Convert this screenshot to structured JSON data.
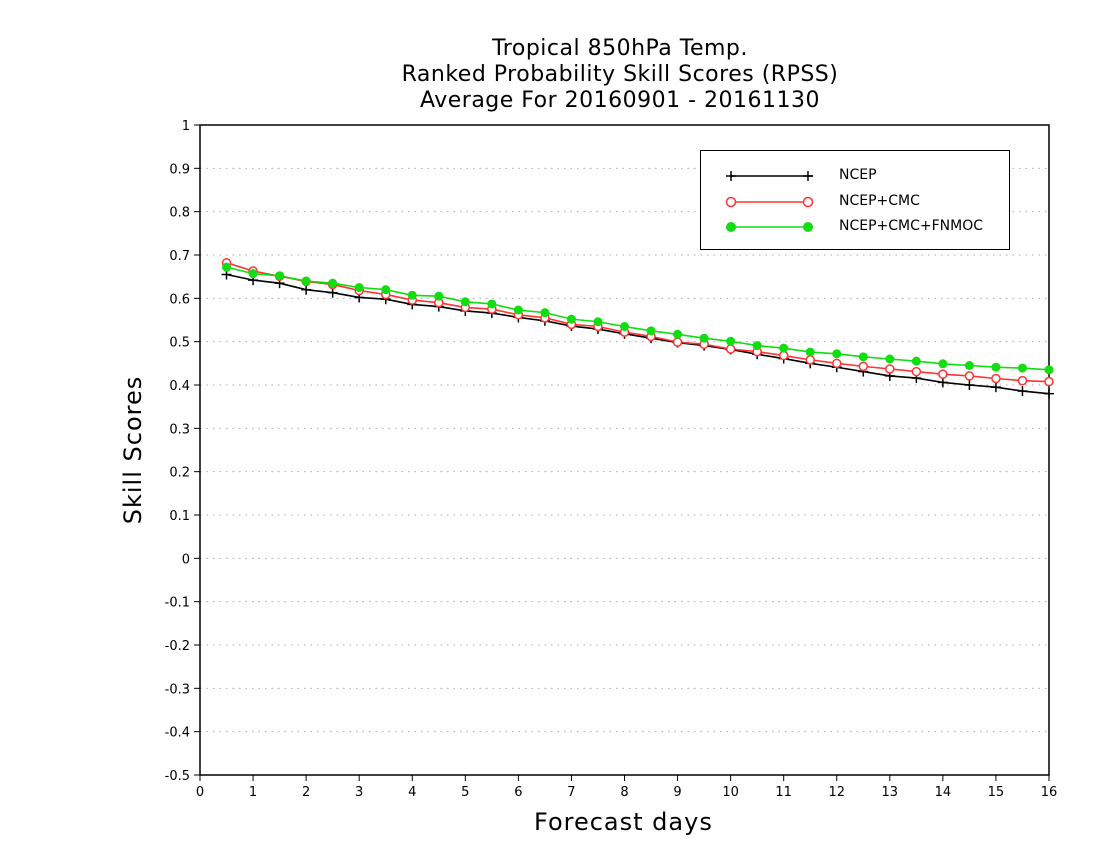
{
  "chart_data": {
    "type": "line",
    "title": [
      "Tropical 850hPa Temp.",
      "Ranked Probability Skill Scores (RPSS)",
      "Average For 20160901 - 20161130"
    ],
    "xlabel": "Forecast days",
    "ylabel": "Skill Scores",
    "xlim": [
      0,
      16
    ],
    "ylim": [
      -0.5,
      1
    ],
    "x_ticks": [
      "0",
      "1",
      "2",
      "3",
      "4",
      "5",
      "6",
      "7",
      "8",
      "9",
      "10",
      "11",
      "12",
      "13",
      "14",
      "15",
      "16"
    ],
    "y_ticks": [
      "-0.5",
      "-0.4",
      "-0.3",
      "-0.2",
      "-0.1",
      "0",
      "0.1",
      "0.2",
      "0.3",
      "0.4",
      "0.5",
      "0.6",
      "0.7",
      "0.8",
      "0.9",
      "1"
    ],
    "grid": "horizontal dotted",
    "legend_position": "top-right",
    "x": [
      0.5,
      1,
      1.5,
      2,
      2.5,
      3,
      3.5,
      4,
      4.5,
      5,
      5.5,
      6,
      6.5,
      7,
      7.5,
      8,
      8.5,
      9,
      9.5,
      10,
      10.5,
      11,
      11.5,
      12,
      12.5,
      13,
      13.5,
      14,
      14.5,
      15,
      15.5,
      16
    ],
    "series": [
      {
        "name": "NCEP",
        "color": "#000000",
        "marker": "plus",
        "values": [
          0.655,
          0.642,
          0.635,
          0.62,
          0.613,
          0.602,
          0.598,
          0.586,
          0.581,
          0.571,
          0.566,
          0.556,
          0.548,
          0.536,
          0.529,
          0.518,
          0.508,
          0.498,
          0.491,
          0.482,
          0.471,
          0.461,
          0.45,
          0.441,
          0.431,
          0.421,
          0.416,
          0.406,
          0.4,
          0.395,
          0.386,
          0.38
        ]
      },
      {
        "name": "NCEP+CMC",
        "color": "#ff3333",
        "marker": "open-circle",
        "values": [
          0.682,
          0.663,
          0.651,
          0.639,
          0.632,
          0.618,
          0.609,
          0.596,
          0.59,
          0.579,
          0.575,
          0.562,
          0.555,
          0.54,
          0.535,
          0.522,
          0.512,
          0.499,
          0.494,
          0.483,
          0.477,
          0.468,
          0.458,
          0.45,
          0.443,
          0.437,
          0.431,
          0.425,
          0.421,
          0.415,
          0.41,
          0.408
        ]
      },
      {
        "name": "NCEP+CMC+FNMOC",
        "color": "#11dd11",
        "marker": "filled-circle",
        "values": [
          0.672,
          0.657,
          0.652,
          0.64,
          0.635,
          0.625,
          0.62,
          0.607,
          0.605,
          0.592,
          0.587,
          0.573,
          0.567,
          0.552,
          0.546,
          0.535,
          0.525,
          0.517,
          0.508,
          0.501,
          0.491,
          0.485,
          0.476,
          0.472,
          0.465,
          0.46,
          0.455,
          0.449,
          0.445,
          0.441,
          0.439,
          0.435
        ]
      }
    ]
  }
}
